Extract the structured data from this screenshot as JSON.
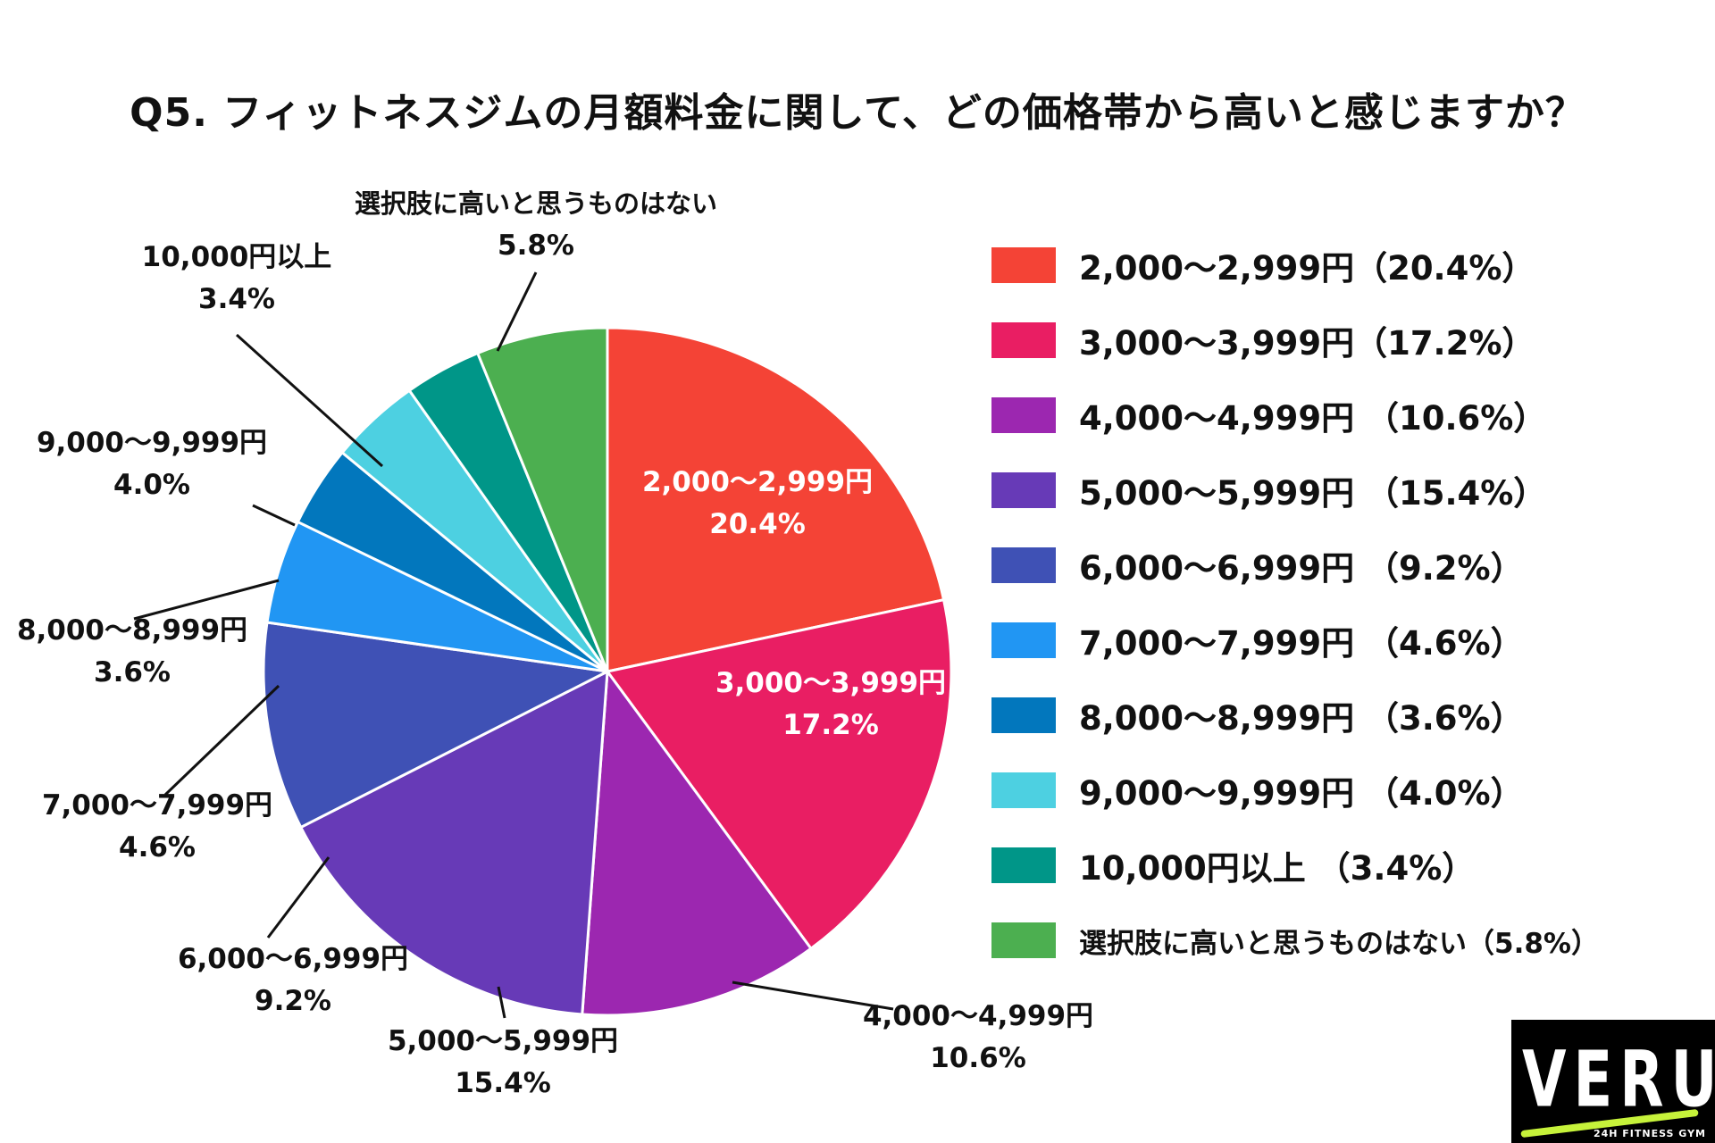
{
  "chart_data": {
    "type": "pie",
    "title": "Q5. フィットネスジムの月額料金に関して、どの価格帯から高いと感じますか？",
    "categories": [
      "2,000〜2,999円",
      "3,000〜3,999円",
      "4,000〜4,999円",
      "5,000〜5,999円",
      "6,000〜6,999円",
      "7,000〜7,999円",
      "8,000〜8,999円",
      "9,000〜9,999円",
      "10,000円以上",
      "選択肢に高いと思うものはない"
    ],
    "values": [
      20.4,
      17.2,
      10.6,
      15.4,
      9.2,
      4.6,
      3.6,
      4.0,
      3.4,
      5.8
    ],
    "value_labels": [
      "20.4%",
      "17.2%",
      "10.6%",
      "15.4%",
      "9.2%",
      "4.6%",
      "3.6%",
      "4.0%",
      "3.4%",
      "5.8%"
    ],
    "colors": [
      "#f44336",
      "#e91e63",
      "#9c27b0",
      "#673ab7",
      "#3f51b5",
      "#2196f3",
      "#0277bd",
      "#4dd0e1",
      "#009688",
      "#4caf50"
    ],
    "legend_entries": [
      "2,000〜2,999円（20.4%）",
      "3,000〜3,999円（17.2%）",
      "4,000〜4,999円 （10.6%）",
      "5,000〜5,999円 （15.4%）",
      "6,000〜6,999円 （9.2%）",
      "7,000〜7,999円 （4.6%）",
      "8,000〜8,999円 （3.6%）",
      "9,000〜9,999円 （4.0%）",
      "10,000円以上 （3.4%）",
      "選択肢に高いと思うものはない（5.8%）"
    ],
    "legend_placement": "right"
  },
  "logo": {
    "text": "VERUS",
    "subtext": "24H FITNESS GYM"
  }
}
